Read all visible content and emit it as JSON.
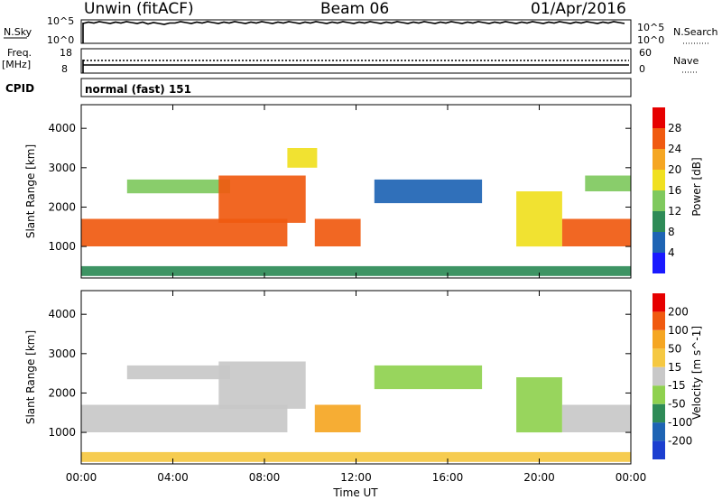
{
  "header": {
    "station": "Unwin (fitACF)",
    "beam": "Beam 06",
    "date": "01/Apr/2016"
  },
  "top_panels": {
    "nsky": {
      "label": "N.Sky",
      "right_label": "N.Search",
      "ticks_left": [
        "10^5",
        "10^0"
      ],
      "ticks_right": [
        "10^5",
        "10^0"
      ]
    },
    "freq": {
      "label_lines": [
        "Freq.",
        "[MHz]"
      ],
      "ticks_left": [
        "18",
        "8"
      ],
      "right_label": "Nave",
      "ticks_right": [
        "60",
        "0"
      ]
    },
    "cpid": {
      "label": "CPID",
      "value": "normal (fast) 151"
    }
  },
  "chart_data": [
    {
      "type": "heatmap",
      "name": "power_panel",
      "ylabel": "Slant Range [km]",
      "yticks": [
        "1000",
        "2000",
        "3000",
        "4000"
      ],
      "ylim": [
        200,
        4600
      ],
      "xlim": [
        0,
        24
      ],
      "colorbar": {
        "label": "Power [dB]",
        "ticks": [
          "4",
          "8",
          "12",
          "16",
          "20",
          "24",
          "28"
        ],
        "colors": [
          "#1a1aff",
          "#1e64b4",
          "#2e8b57",
          "#7fc95e",
          "#f0e020",
          "#f5a623",
          "#f05a10",
          "#e60000"
        ]
      },
      "regions": [
        {
          "t0": 0.0,
          "t1": 9.0,
          "r0": 1000,
          "r1": 1700,
          "db": 27
        },
        {
          "t0": 2.0,
          "t1": 6.5,
          "r0": 2350,
          "r1": 2700,
          "db": 14
        },
        {
          "t0": 6.0,
          "t1": 9.8,
          "r0": 1600,
          "r1": 2800,
          "db": 25
        },
        {
          "t0": 9.0,
          "t1": 10.3,
          "r0": 3000,
          "r1": 3500,
          "db": 16
        },
        {
          "t0": 10.2,
          "t1": 12.2,
          "r0": 1000,
          "r1": 1700,
          "db": 24
        },
        {
          "t0": 12.8,
          "t1": 17.5,
          "r0": 2100,
          "r1": 2700,
          "db": 6
        },
        {
          "t0": 19.0,
          "t1": 21.0,
          "r0": 1000,
          "r1": 2400,
          "db": 18
        },
        {
          "t0": 21.0,
          "t1": 24.0,
          "r0": 1000,
          "r1": 1700,
          "db": 26
        },
        {
          "t0": 22.0,
          "t1": 24.0,
          "r0": 2400,
          "r1": 2800,
          "db": 12
        },
        {
          "t0": 0.0,
          "t1": 24.0,
          "r0": 250,
          "r1": 500,
          "db": 10
        }
      ]
    },
    {
      "type": "heatmap",
      "name": "velocity_panel",
      "ylabel": "Slant Range [km]",
      "yticks": [
        "1000",
        "2000",
        "3000",
        "4000"
      ],
      "ylim": [
        200,
        4600
      ],
      "xlim": [
        0,
        24
      ],
      "xticks": [
        "00:00",
        "04:00",
        "08:00",
        "12:00",
        "16:00",
        "20:00",
        "00:00"
      ],
      "xlabel": "Time UT",
      "colorbar": {
        "label": "Velocity [m s^-1]",
        "ticks": [
          "200",
          "100",
          "50",
          "15",
          "-15",
          "-50",
          "-100",
          "-200"
        ],
        "colors": [
          "#1c3fd0",
          "#1e64b4",
          "#2e8b57",
          "#8fd14f",
          "#c8c8c8",
          "#f5c842",
          "#f5a623",
          "#f05a10",
          "#e60000"
        ]
      },
      "regions": [
        {
          "t0": 0.0,
          "t1": 9.0,
          "r0": 1000,
          "r1": 1700,
          "vel": 0
        },
        {
          "t0": 2.0,
          "t1": 6.5,
          "r0": 2350,
          "r1": 2700,
          "vel": 0
        },
        {
          "t0": 6.0,
          "t1": 9.8,
          "r0": 1600,
          "r1": 2800,
          "vel": 0
        },
        {
          "t0": 10.2,
          "t1": 12.2,
          "r0": 1000,
          "r1": 1700,
          "vel": -70
        },
        {
          "t0": 12.8,
          "t1": 17.5,
          "r0": 2100,
          "r1": 2700,
          "vel": 30
        },
        {
          "t0": 19.0,
          "t1": 21.0,
          "r0": 1000,
          "r1": 2400,
          "vel": 20
        },
        {
          "t0": 21.0,
          "t1": 24.0,
          "r0": 1000,
          "r1": 1700,
          "vel": 0
        },
        {
          "t0": 0.0,
          "t1": 24.0,
          "r0": 250,
          "r1": 500,
          "vel": -40
        }
      ]
    }
  ]
}
